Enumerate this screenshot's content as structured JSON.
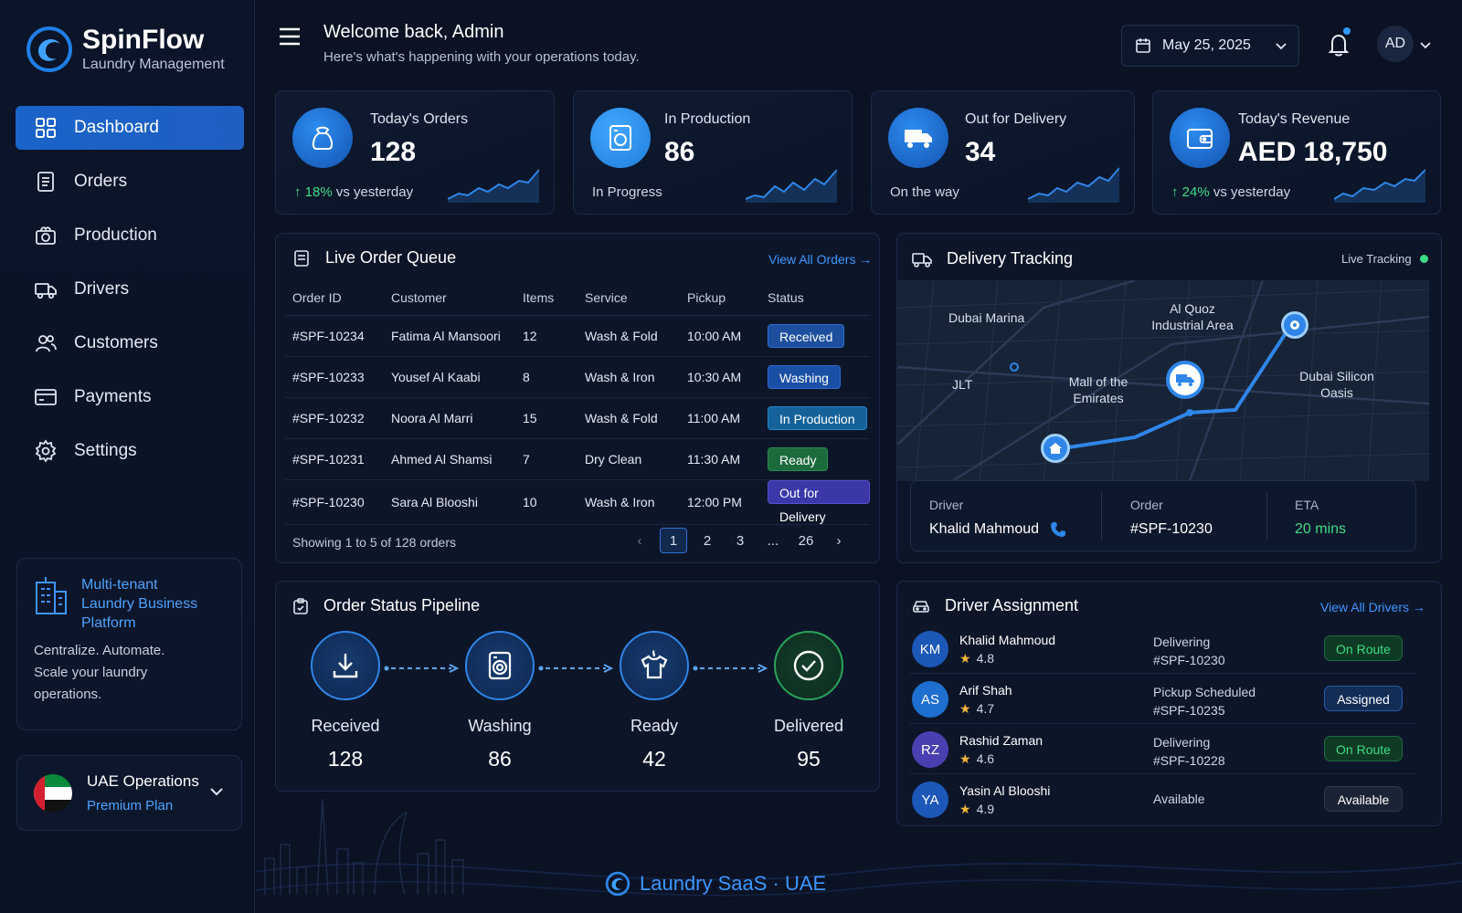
{
  "brand": {
    "name": "SpinFlow",
    "subtitle": "Laundry Management"
  },
  "nav": [
    {
      "label": "Dashboard",
      "icon": "grid-icon",
      "active": true
    },
    {
      "label": "Orders",
      "icon": "document-icon"
    },
    {
      "label": "Production",
      "icon": "washing-machine-icon"
    },
    {
      "label": "Drivers",
      "icon": "truck-icon"
    },
    {
      "label": "Customers",
      "icon": "users-icon"
    },
    {
      "label": "Payments",
      "icon": "credit-card-icon"
    },
    {
      "label": "Settings",
      "icon": "gear-icon"
    }
  ],
  "promo": {
    "title_lines": [
      "Multi-tenant",
      "Laundry Business",
      "Platform"
    ],
    "text_lines": [
      "Centralize. Automate.",
      "Scale your laundry",
      "operations."
    ]
  },
  "tenant": {
    "name": "UAE Operations",
    "plan": "Premium Plan"
  },
  "header": {
    "welcome": "Welcome back, Admin",
    "subtitle": "Here's what's happening with your operations today.",
    "date": "May 25, 2025",
    "avatar_initials": "AD"
  },
  "stats": [
    {
      "title": "Today's Orders",
      "value": "128",
      "change": "18%",
      "foot": "vs yesterday",
      "icon": "laundry-bag-icon"
    },
    {
      "title": "In Production",
      "value": "86",
      "foot": "In Progress",
      "icon": "washing-machine-icon"
    },
    {
      "title": "Out for Delivery",
      "value": "34",
      "foot": "On the way",
      "icon": "delivery-truck-icon"
    },
    {
      "title": "Today's Revenue",
      "value": "AED 18,750",
      "change": "24%",
      "foot": "vs yesterday",
      "icon": "wallet-icon"
    }
  ],
  "queue": {
    "title": "Live Order Queue",
    "link": "View All Orders",
    "columns": [
      "Order ID",
      "Customer",
      "Items",
      "Service",
      "Pickup",
      "Status"
    ],
    "rows": [
      {
        "id": "#SPF-10234",
        "customer": "Fatima Al Mansoori",
        "items": "12",
        "service": "Wash & Fold",
        "pickup": "10:00 AM",
        "status": "Received"
      },
      {
        "id": "#SPF-10233",
        "customer": "Yousef Al Kaabi",
        "items": "8",
        "service": "Wash & Iron",
        "pickup": "10:30 AM",
        "status": "Washing"
      },
      {
        "id": "#SPF-10232",
        "customer": "Noora Al Marri",
        "items": "15",
        "service": "Wash & Fold",
        "pickup": "11:00 AM",
        "status": "In Production"
      },
      {
        "id": "#SPF-10231",
        "customer": "Ahmed Al Shamsi",
        "items": "7",
        "service": "Dry Clean",
        "pickup": "11:30 AM",
        "status": "Ready"
      },
      {
        "id": "#SPF-10230",
        "customer": "Sara Al Blooshi",
        "items": "10",
        "service": "Wash & Iron",
        "pickup": "12:00 PM",
        "status": "Out for Delivery"
      }
    ],
    "showing": "Showing 1 to 5 of 128 orders",
    "pages": [
      "1",
      "2",
      "3",
      "...",
      "26"
    ]
  },
  "tracking": {
    "title": "Delivery Tracking",
    "live": "Live Tracking",
    "map_labels": [
      "Dubai Marina",
      "Al Quoz Industrial Area",
      "JLT",
      "Mall of the Emirates",
      "Dubai Silicon Oasis"
    ],
    "driver_label": "Driver",
    "driver": "Khalid Mahmoud",
    "order_label": "Order",
    "order": "#SPF-10230",
    "eta_label": "ETA",
    "eta": "20 mins"
  },
  "pipeline": {
    "title": "Order Status Pipeline",
    "steps": [
      {
        "label": "Received",
        "count": "128"
      },
      {
        "label": "Washing",
        "count": "86"
      },
      {
        "label": "Ready",
        "count": "42"
      },
      {
        "label": "Delivered",
        "count": "95"
      }
    ]
  },
  "drivers": {
    "title": "Driver Assignment",
    "link": "View All Drivers",
    "rows": [
      {
        "initials": "KM",
        "name": "Khalid Mahmoud",
        "rating": "4.8",
        "task": "Delivering",
        "order": "#SPF-10230",
        "status": "On Route"
      },
      {
        "initials": "AS",
        "name": "Arif Shah",
        "rating": "4.7",
        "task": "Pickup Scheduled",
        "order": "#SPF-10235",
        "status": "Assigned"
      },
      {
        "initials": "RZ",
        "name": "Rashid Zaman",
        "rating": "4.6",
        "task": "Delivering",
        "order": "#SPF-10228",
        "status": "On Route"
      },
      {
        "initials": "YA",
        "name": "Yasin Al Blooshi",
        "rating": "4.9",
        "task": "Available",
        "order": "",
        "status": "Available"
      }
    ]
  },
  "footer": {
    "text": "Laundry SaaS · UAE"
  },
  "colors": {
    "accent": "#2f86e8",
    "success": "#3ddc84",
    "background": "#0a1224"
  }
}
